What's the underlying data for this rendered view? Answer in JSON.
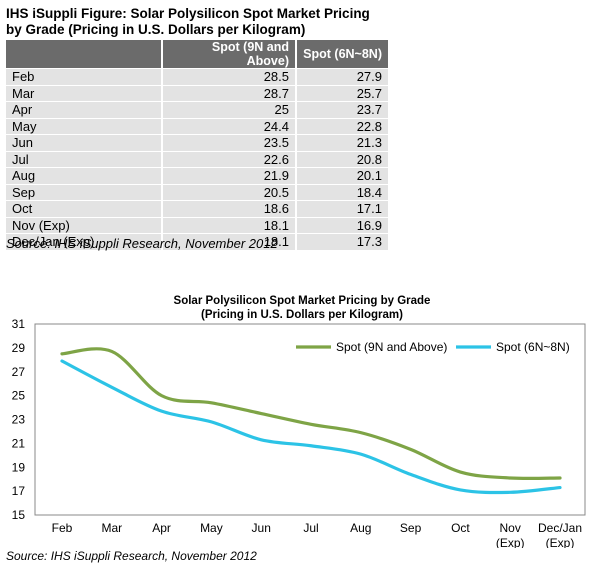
{
  "table": {
    "title_line1": "IHS iSuppli Figure: Solar Polysilicon Spot Market Pricing",
    "title_line2": "by Grade (Pricing in U.S. Dollars per Kilogram)",
    "headers": [
      "",
      "Spot (9N and Above)",
      "Spot (6N~8N)"
    ],
    "rows": [
      [
        "Feb",
        "28.5",
        "27.9"
      ],
      [
        "Mar",
        "28.7",
        "25.7"
      ],
      [
        "Apr",
        "25",
        "23.7"
      ],
      [
        "May",
        "24.4",
        "22.8"
      ],
      [
        "Jun",
        "23.5",
        "21.3"
      ],
      [
        "Jul",
        "22.6",
        "20.8"
      ],
      [
        "Aug",
        "21.9",
        "20.1"
      ],
      [
        "Sep",
        "20.5",
        "18.4"
      ],
      [
        "Oct",
        "18.6",
        "17.1"
      ],
      [
        "Nov (Exp)",
        "18.1",
        "16.9"
      ],
      [
        "Dec/Jan (Exp)",
        "18.1",
        "17.3"
      ]
    ],
    "source": "Source: IHS iSuppli Research, November 2012"
  },
  "chart_data": {
    "type": "line",
    "title": "Solar Polysilicon Spot Market Pricing by Grade",
    "subtitle": "(Pricing in U.S. Dollars per Kilogram)",
    "categories": [
      "Feb",
      "Mar",
      "Apr",
      "May",
      "Jun",
      "Jul",
      "Aug",
      "Sep",
      "Oct",
      "Nov\n(Exp)",
      "Dec/Jan\n(Exp)"
    ],
    "ylim": [
      15,
      31
    ],
    "yticks": [
      15,
      17,
      19,
      21,
      23,
      25,
      27,
      29,
      31
    ],
    "legend_position": "top-right",
    "series": [
      {
        "name": "Spot (9N and Above)",
        "color": "#7ea446",
        "values": [
          28.5,
          28.7,
          25,
          24.4,
          23.5,
          22.6,
          21.9,
          20.5,
          18.6,
          18.1,
          18.1
        ]
      },
      {
        "name": "Spot (6N~8N)",
        "color": "#2cc3e6",
        "values": [
          27.9,
          25.7,
          23.7,
          22.8,
          21.3,
          20.8,
          20.1,
          18.4,
          17.1,
          16.9,
          17.3
        ]
      }
    ],
    "source": "Source: IHS iSuppli Research, November 2012"
  }
}
